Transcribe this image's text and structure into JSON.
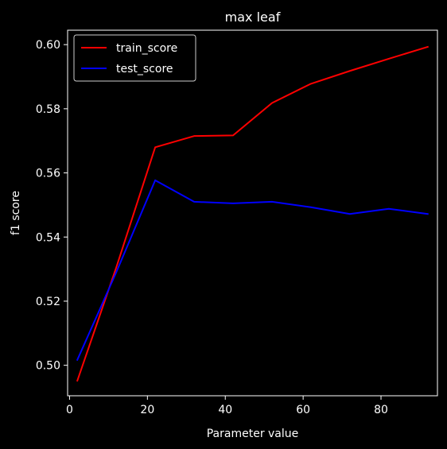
{
  "chart_data": {
    "type": "line",
    "title": "max leaf",
    "xlabel": "Parameter value",
    "ylabel": "f1 score",
    "x": [
      2,
      12,
      22,
      32,
      42,
      52,
      62,
      72,
      82,
      92
    ],
    "series": [
      {
        "name": "train_score",
        "color": "#ff0000",
        "values": [
          0.4952,
          0.5305,
          0.568,
          0.5715,
          0.5717,
          0.5818,
          0.5878,
          0.5918,
          0.5956,
          0.5993
        ]
      },
      {
        "name": "test_score",
        "color": "#0000ff",
        "values": [
          0.5017,
          0.529,
          0.5577,
          0.551,
          0.5505,
          0.551,
          0.5493,
          0.5472,
          0.5488,
          0.5472
        ]
      }
    ],
    "xlim": [
      -0.5,
      94.5
    ],
    "ylim": [
      0.4905,
      0.6045
    ],
    "xticks": [
      0,
      20,
      40,
      60,
      80
    ],
    "yticks": [
      0.5,
      0.52,
      0.54,
      0.56,
      0.58,
      0.6
    ],
    "ytick_labels": [
      "0.50",
      "0.52",
      "0.54",
      "0.56",
      "0.58",
      "0.60"
    ],
    "grid": false,
    "legend_position": "upper-left",
    "background_color": "#000000",
    "foreground_color": "#ffffff"
  }
}
